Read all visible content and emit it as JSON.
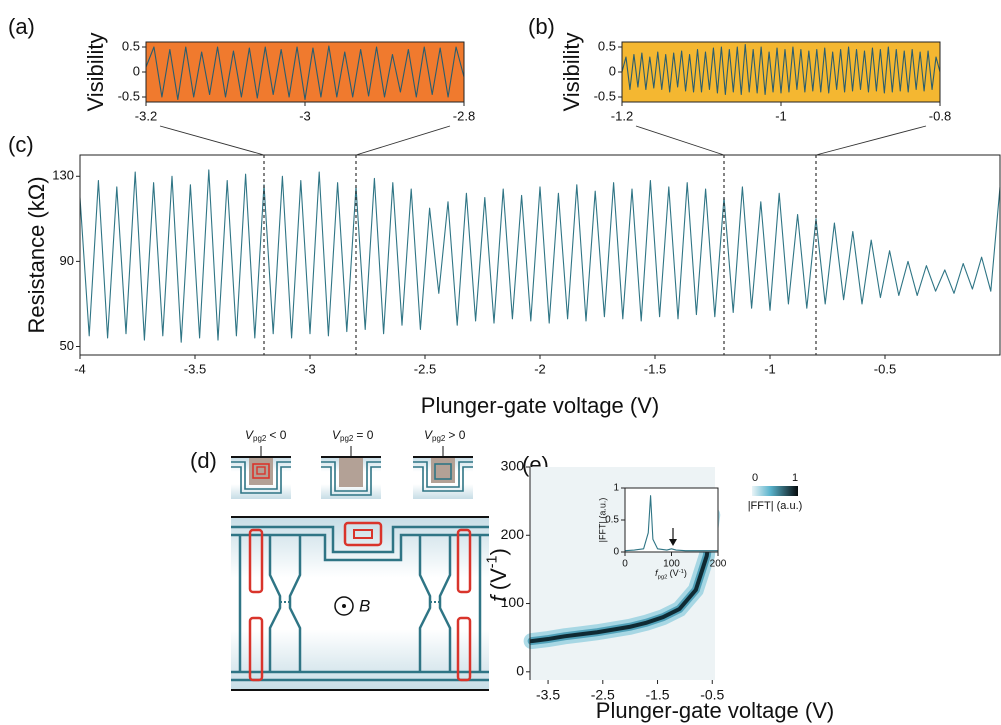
{
  "panel_labels": [
    "(a)",
    "(b)",
    "(c)",
    "(d)",
    "(e)"
  ],
  "diagram": {
    "insets": [
      {
        "symbol": "V",
        "subscript": "pg2",
        "relation": "< 0"
      },
      {
        "symbol": "V",
        "subscript": "pg2",
        "relation": "= 0"
      },
      {
        "symbol": "V",
        "subscript": "pg2",
        "relation": "> 0"
      }
    ],
    "field": "B"
  },
  "chart_data": [
    {
      "type": "line",
      "ylabel": "Visibility",
      "color": "#2a5d6e",
      "background": "#f07a2e",
      "xlim": [
        -3.2,
        -2.8
      ],
      "xticks": [
        -3.2,
        -3,
        -2.8
      ],
      "ylim": [
        -0.6,
        0.6
      ],
      "yticks": [
        0.5,
        0,
        -0.5
      ],
      "x": [
        -3.2,
        -3.19,
        -3.18,
        -3.17,
        -3.16,
        -3.15,
        -3.14,
        -3.13,
        -3.12,
        -3.11,
        -3.1,
        -3.09,
        -3.08,
        -3.07,
        -3.06,
        -3.05,
        -3.04,
        -3.03,
        -3.02,
        -3.01,
        -3,
        -2.99,
        -2.98,
        -2.97,
        -2.96,
        -2.95,
        -2.94,
        -2.93,
        -2.92,
        -2.91,
        -2.9,
        -2.89,
        -2.88,
        -2.87,
        -2.86,
        -2.85,
        -2.84,
        -2.83,
        -2.82,
        -2.81,
        -2.8
      ],
      "values": [
        0.1,
        0.5,
        -0.5,
        0.45,
        -0.55,
        0.5,
        -0.5,
        0.4,
        -0.45,
        0.5,
        -0.5,
        0.42,
        -0.5,
        0.48,
        -0.52,
        0.5,
        -0.45,
        0.45,
        -0.5,
        0.5,
        -0.55,
        0.48,
        -0.5,
        0.52,
        -0.5,
        0.4,
        -0.5,
        0.45,
        -0.48,
        0.5,
        -0.5,
        0.35,
        -0.4,
        0.45,
        -0.5,
        0.5,
        -0.45,
        0.48,
        -0.5,
        0.5,
        -0.1
      ]
    },
    {
      "type": "line",
      "ylabel": "Visibility",
      "color": "#2a5d6e",
      "background": "#f4b731",
      "xlim": [
        -1.2,
        -0.8
      ],
      "xticks": [
        -1.2,
        -1,
        -0.8
      ],
      "ylim": [
        -0.6,
        0.6
      ],
      "yticks": [
        0.5,
        0,
        -0.5
      ],
      "x": [
        -1.2,
        -1.195,
        -1.19,
        -1.185,
        -1.18,
        -1.175,
        -1.17,
        -1.165,
        -1.16,
        -1.155,
        -1.15,
        -1.145,
        -1.14,
        -1.135,
        -1.13,
        -1.125,
        -1.12,
        -1.115,
        -1.11,
        -1.105,
        -1.1,
        -1.095,
        -1.09,
        -1.085,
        -1.08,
        -1.075,
        -1.07,
        -1.065,
        -1.06,
        -1.055,
        -1.05,
        -1.045,
        -1.04,
        -1.035,
        -1.03,
        -1.025,
        -1.02,
        -1.015,
        -1.01,
        -1.005,
        -1,
        -0.995,
        -0.99,
        -0.985,
        -0.98,
        -0.975,
        -0.97,
        -0.965,
        -0.96,
        -0.955,
        -0.95,
        -0.945,
        -0.94,
        -0.935,
        -0.93,
        -0.925,
        -0.92,
        -0.915,
        -0.91,
        -0.905,
        -0.9,
        -0.895,
        -0.89,
        -0.885,
        -0.88,
        -0.875,
        -0.87,
        -0.865,
        -0.86,
        -0.855,
        -0.85,
        -0.845,
        -0.84,
        -0.835,
        -0.83,
        -0.825,
        -0.82,
        -0.815,
        -0.81,
        -0.805,
        -0.8
      ],
      "values": [
        0,
        0.3,
        -0.35,
        0.35,
        -0.3,
        0.38,
        -0.35,
        0.3,
        -0.32,
        0.4,
        -0.35,
        0.35,
        -0.4,
        0.38,
        -0.3,
        0.42,
        -0.38,
        0.35,
        -0.4,
        0.45,
        -0.4,
        0.4,
        -0.35,
        0.48,
        -0.42,
        0.5,
        -0.45,
        0.45,
        -0.4,
        0.5,
        -0.45,
        0.55,
        -0.4,
        0.45,
        -0.42,
        0.5,
        -0.45,
        0.4,
        -0.4,
        0.48,
        -0.42,
        0.45,
        -0.4,
        0.5,
        -0.35,
        0.45,
        -0.4,
        0.42,
        -0.38,
        0.45,
        -0.4,
        0.48,
        -0.42,
        0.4,
        -0.35,
        0.45,
        -0.4,
        0.5,
        -0.38,
        0.45,
        -0.35,
        0.42,
        -0.4,
        0.48,
        -0.38,
        0.45,
        -0.42,
        0.5,
        -0.4,
        0.45,
        -0.38,
        0.42,
        -0.4,
        0.45,
        -0.35,
        0.4,
        -0.38,
        0.42,
        -0.35,
        0.3,
        0
      ]
    },
    {
      "type": "line",
      "ylabel": "Resistance (kΩ)",
      "xlabel": "Plunger-gate voltage (V)",
      "color": "#2f7585",
      "xlim": [
        -4,
        0
      ],
      "xticks": [
        -4,
        -3.5,
        -3,
        -2.5,
        -2,
        -1.5,
        -1,
        -0.5
      ],
      "ylim": [
        46,
        140
      ],
      "yticks": [
        130,
        90,
        50
      ],
      "x": [
        -4,
        -3.96,
        -3.92,
        -3.88,
        -3.84,
        -3.8,
        -3.76,
        -3.72,
        -3.68,
        -3.64,
        -3.6,
        -3.56,
        -3.52,
        -3.48,
        -3.44,
        -3.4,
        -3.36,
        -3.32,
        -3.28,
        -3.24,
        -3.2,
        -3.16,
        -3.12,
        -3.08,
        -3.04,
        -3,
        -2.96,
        -2.92,
        -2.88,
        -2.84,
        -2.8,
        -2.76,
        -2.72,
        -2.68,
        -2.64,
        -2.6,
        -2.56,
        -2.52,
        -2.48,
        -2.44,
        -2.4,
        -2.36,
        -2.32,
        -2.28,
        -2.24,
        -2.2,
        -2.16,
        -2.12,
        -2.08,
        -2.04,
        -2,
        -1.96,
        -1.92,
        -1.88,
        -1.84,
        -1.8,
        -1.76,
        -1.72,
        -1.68,
        -1.64,
        -1.6,
        -1.56,
        -1.52,
        -1.48,
        -1.44,
        -1.4,
        -1.36,
        -1.32,
        -1.28,
        -1.24,
        -1.2,
        -1.16,
        -1.12,
        -1.08,
        -1.04,
        -1,
        -0.96,
        -0.92,
        -0.88,
        -0.84,
        -0.8,
        -0.76,
        -0.72,
        -0.68,
        -0.64,
        -0.6,
        -0.56,
        -0.52,
        -0.48,
        -0.44,
        -0.4,
        -0.36,
        -0.32,
        -0.28,
        -0.24,
        -0.2,
        -0.16,
        -0.12,
        -0.08,
        -0.04,
        0
      ],
      "values": [
        120,
        55,
        128,
        54,
        125,
        56,
        132,
        53,
        127,
        55,
        130,
        52,
        126,
        54,
        133,
        53,
        128,
        55,
        131,
        54,
        126,
        56,
        130,
        54,
        128,
        56,
        132,
        55,
        127,
        57,
        125,
        58,
        129,
        56,
        127,
        60,
        124,
        58,
        115,
        75,
        118,
        60,
        122,
        62,
        120,
        61,
        124,
        63,
        121,
        62,
        125,
        61,
        122,
        63,
        126,
        62,
        123,
        64,
        127,
        63,
        124,
        62,
        128,
        64,
        125,
        63,
        127,
        65,
        124,
        64,
        120,
        66,
        125,
        68,
        118,
        67,
        122,
        70,
        112,
        68,
        110,
        70,
        108,
        72,
        104,
        70,
        100,
        73,
        95,
        74,
        90,
        74,
        88,
        76,
        86,
        75,
        89,
        77,
        92,
        76,
        125
      ]
    },
    {
      "type": "heatmap",
      "ylabel": {
        "symbol": "f",
        "unit": "(V",
        "superscript": "-1",
        "close": ")"
      },
      "xlabel": "Plunger-gate voltage (V)",
      "color": "#0f2a33",
      "xlim": [
        -3.83,
        -0.45
      ],
      "xticks": [
        -3.5,
        -2.5,
        -1.5,
        -0.5
      ],
      "ylim": [
        -12,
        300
      ],
      "yticks": [
        0,
        100,
        200,
        300
      ],
      "x": [
        -3.8,
        -3.5,
        -3.2,
        -2.9,
        -2.6,
        -2.3,
        -2,
        -1.7,
        -1.4,
        -1.1,
        -0.8,
        -0.6,
        -0.5
      ],
      "values": [
        45,
        48,
        52,
        55,
        58,
        62,
        66,
        72,
        80,
        92,
        120,
        170,
        230
      ],
      "colorbar": {
        "ticks": [
          0,
          1
        ],
        "label": "|FFT| (a.u.)"
      }
    },
    {
      "type": "line",
      "ylabel": "|FFT| (a.u.)",
      "xlabel": {
        "symbol": "f",
        "subscript": "pg2",
        "unit": "(V",
        "superscript": "-1",
        "close": ")"
      },
      "color": "#2f7585",
      "xlim": [
        0,
        200
      ],
      "xticks": [
        0,
        100,
        200
      ],
      "ylim": [
        0,
        1
      ],
      "yticks": [
        0,
        0.5,
        1
      ],
      "x": [
        0,
        20,
        40,
        50,
        55,
        60,
        70,
        90,
        100,
        110,
        130,
        160,
        200
      ],
      "values": [
        0.02,
        0.03,
        0.05,
        0.3,
        0.88,
        0.2,
        0.05,
        0.03,
        0.05,
        0.03,
        0.02,
        0.02,
        0.02
      ]
    }
  ]
}
